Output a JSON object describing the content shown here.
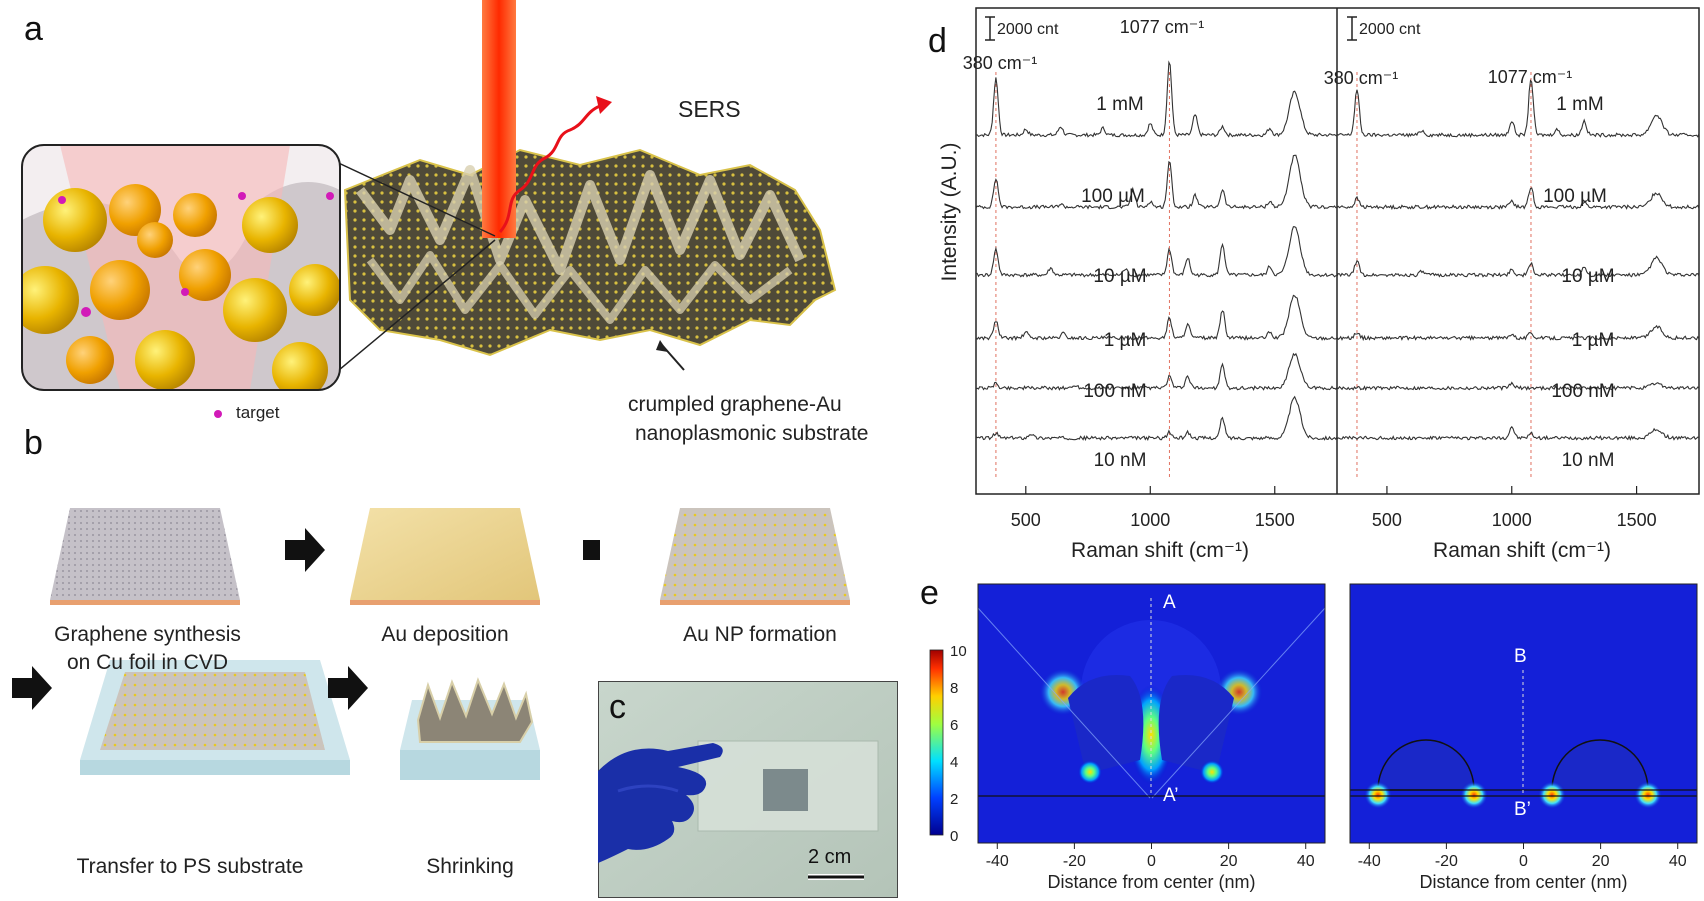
{
  "panels": {
    "a": {
      "label": "a",
      "sers": "SERS",
      "target": "target",
      "substrate_line1": "crumpled graphene-Au",
      "substrate_line2": "nanoplasmonic substrate"
    },
    "b": {
      "label": "b",
      "steps": [
        {
          "line1": "Graphene synthesis",
          "line2": "on Cu foil in CVD"
        },
        {
          "line1": "Au deposition",
          "line2": ""
        },
        {
          "line1": "Au NP formation",
          "line2": ""
        },
        {
          "line1": "Transfer to PS substrate",
          "line2": ""
        },
        {
          "line1": "Shrinking",
          "line2": ""
        }
      ]
    },
    "c": {
      "label": "c",
      "scale": "2 cm"
    },
    "d": {
      "label": "d"
    },
    "e": {
      "label": "e"
    }
  },
  "chart_data": [
    {
      "type": "line",
      "panel": "d-left",
      "xlabel": "Raman shift (cm⁻¹)",
      "ylabel": "Intensity (A.U.)",
      "xticks": [
        500,
        1000,
        1500
      ],
      "xlim": [
        300,
        1750
      ],
      "scale_bar": "2000 cnt",
      "peak_labels": [
        "380 cm⁻¹",
        "1077 cm⁻¹"
      ],
      "peak_positions": [
        380,
        1077
      ],
      "series": [
        {
          "name": "1 mM",
          "peaks": [
            [
              380,
              1.0
            ],
            [
              500,
              0.1
            ],
            [
              640,
              0.15
            ],
            [
              810,
              0.12
            ],
            [
              1000,
              0.2
            ],
            [
              1077,
              1.3
            ],
            [
              1180,
              0.35
            ],
            [
              1290,
              0.15
            ],
            [
              1480,
              0.12
            ],
            [
              1580,
              0.75
            ]
          ]
        },
        {
          "name": "100 µM",
          "peaks": [
            [
              380,
              0.5
            ],
            [
              640,
              0.05
            ],
            [
              930,
              0.3
            ],
            [
              1000,
              0.1
            ],
            [
              1077,
              0.8
            ],
            [
              1180,
              0.2
            ],
            [
              1290,
              0.3
            ],
            [
              1480,
              0.1
            ],
            [
              1580,
              0.9
            ]
          ]
        },
        {
          "name": "10 µM",
          "peaks": [
            [
              380,
              0.45
            ],
            [
              600,
              0.12
            ],
            [
              900,
              0.1
            ],
            [
              1077,
              0.45
            ],
            [
              1150,
              0.3
            ],
            [
              1290,
              0.55
            ],
            [
              1480,
              0.15
            ],
            [
              1580,
              0.85
            ]
          ]
        },
        {
          "name": "1 µM",
          "peaks": [
            [
              380,
              0.3
            ],
            [
              500,
              0.1
            ],
            [
              650,
              0.08
            ],
            [
              1077,
              0.35
            ],
            [
              1150,
              0.25
            ],
            [
              1290,
              0.5
            ],
            [
              1480,
              0.1
            ],
            [
              1580,
              0.75
            ]
          ]
        },
        {
          "name": "100 nM",
          "peaks": [
            [
              380,
              0.08
            ],
            [
              700,
              0.05
            ],
            [
              1077,
              0.2
            ],
            [
              1150,
              0.2
            ],
            [
              1290,
              0.4
            ],
            [
              1580,
              0.6
            ]
          ]
        },
        {
          "name": "10 nM",
          "peaks": [
            [
              380,
              0.08
            ],
            [
              520,
              0.08
            ],
            [
              1077,
              0.1
            ],
            [
              1150,
              0.1
            ],
            [
              1290,
              0.35
            ],
            [
              1580,
              0.7
            ]
          ]
        }
      ]
    },
    {
      "type": "line",
      "panel": "d-right",
      "xlabel": "Raman shift (cm⁻¹)",
      "xticks": [
        500,
        1000,
        1500
      ],
      "xlim": [
        300,
        1750
      ],
      "scale_bar": "2000 cnt",
      "peak_labels": [
        "380 cm⁻¹",
        "1077 cm⁻¹"
      ],
      "peak_positions": [
        380,
        1077
      ],
      "series": [
        {
          "name": "1 mM",
          "peaks": [
            [
              380,
              0.8
            ],
            [
              640,
              0.08
            ],
            [
              1000,
              0.25
            ],
            [
              1077,
              1.0
            ],
            [
              1180,
              0.1
            ],
            [
              1290,
              0.25
            ],
            [
              1580,
              0.35
            ]
          ]
        },
        {
          "name": "100 µM",
          "peaks": [
            [
              380,
              0.15
            ],
            [
              1000,
              0.1
            ],
            [
              1077,
              0.35
            ],
            [
              1290,
              0.08
            ],
            [
              1580,
              0.25
            ]
          ]
        },
        {
          "name": "10 µM",
          "peaks": [
            [
              380,
              0.25
            ],
            [
              640,
              0.06
            ],
            [
              1000,
              0.1
            ],
            [
              1077,
              0.2
            ],
            [
              1290,
              0.15
            ],
            [
              1580,
              0.3
            ]
          ]
        },
        {
          "name": "1 µM",
          "peaks": [
            [
              380,
              0.1
            ],
            [
              1000,
              0.08
            ],
            [
              1077,
              0.1
            ],
            [
              1580,
              0.2
            ]
          ]
        },
        {
          "name": "100 nM",
          "peaks": [
            [
              1000,
              0.08
            ],
            [
              1580,
              0.08
            ]
          ]
        },
        {
          "name": "10 nM",
          "peaks": [
            [
              1000,
              0.2
            ],
            [
              1077,
              0.08
            ],
            [
              1580,
              0.15
            ]
          ]
        }
      ]
    },
    {
      "type": "heatmap",
      "panel": "e",
      "xlabel": "Distance from center (nm)",
      "xticks": [
        -40,
        -20,
        0,
        20,
        40
      ],
      "xlim": [
        -45,
        45
      ],
      "colorbar_ticks": [
        0,
        2,
        4,
        6,
        8,
        10
      ],
      "colorbar_range": [
        0,
        10
      ],
      "maps": [
        {
          "line_labels": [
            "A",
            "A’"
          ]
        },
        {
          "line_labels": [
            "B",
            "B’"
          ]
        }
      ]
    }
  ]
}
